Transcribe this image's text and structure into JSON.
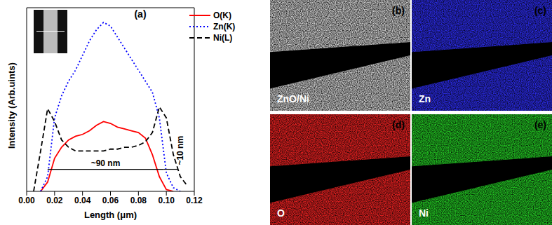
{
  "chart_data": {
    "type": "line",
    "title": "(a)",
    "x_label": "Length (μm)",
    "y_label": "Intensity (Arb.uints)",
    "x": [
      0,
      0.005,
      0.01,
      0.015,
      0.02,
      0.025,
      0.03,
      0.035,
      0.04,
      0.045,
      0.05,
      0.055,
      0.06,
      0.065,
      0.07,
      0.075,
      0.08,
      0.085,
      0.09,
      0.095,
      0.1,
      0.105,
      0.11,
      0.115,
      0.12
    ],
    "series": [
      {
        "name": "O(K)",
        "color": "#ff0000",
        "line_style": "solid",
        "values": [
          null,
          null,
          0,
          5,
          18,
          24,
          28,
          30,
          31,
          33,
          36,
          38,
          37,
          35,
          34,
          33,
          32,
          29,
          20,
          8,
          1,
          0,
          null,
          null,
          null
        ]
      },
      {
        "name": "Zn(K)",
        "color": "#0000ff",
        "line_style": "dotted",
        "values": [
          null,
          null,
          0,
          8,
          40,
          52,
          60,
          66,
          74,
          82,
          88,
          92,
          90,
          84,
          78,
          72,
          66,
          60,
          54,
          40,
          10,
          2,
          0,
          null,
          null
        ]
      },
      {
        "name": "Ni(L)",
        "color": "#000000",
        "line_style": "dashed",
        "values": [
          null,
          0,
          22,
          45,
          38,
          28,
          24,
          22,
          22,
          22,
          22,
          22,
          23,
          23,
          24,
          24,
          25,
          27,
          32,
          46,
          40,
          20,
          8,
          3,
          null
        ]
      }
    ],
    "xlim": [
      0,
      0.12
    ],
    "xticks": [
      {
        "value": 0,
        "label": "0.00"
      },
      {
        "value": 0.02,
        "label": "0.02"
      },
      {
        "value": 0.04,
        "label": "0.04"
      },
      {
        "value": 0.06,
        "label": "0.06"
      },
      {
        "value": 0.08,
        "label": "0.08"
      },
      {
        "value": 0.1,
        "label": "0.10"
      },
      {
        "value": 0.12,
        "label": "0.12"
      }
    ],
    "ylim": [
      0,
      100
    ],
    "yticks": [],
    "tick_labels": "x",
    "grid": false,
    "legend": "upper right",
    "annotations": [
      {
        "text": "~90 nm",
        "x": [
          0.015,
          0.098
        ],
        "y": 12
      },
      {
        "text": "~10 nm",
        "x": [
          0.098,
          0.108
        ],
        "y": 12
      }
    ]
  },
  "maps": [
    {
      "label": "(b)",
      "caption": "ZnO/Ni",
      "color": "#c8c8c8"
    },
    {
      "label": "(c)",
      "caption": "Zn",
      "color": "#2a2ae0"
    },
    {
      "label": "(d)",
      "caption": "O",
      "color": "#e02020"
    },
    {
      "label": "(e)",
      "caption": "Ni",
      "color": "#22c022"
    }
  ]
}
